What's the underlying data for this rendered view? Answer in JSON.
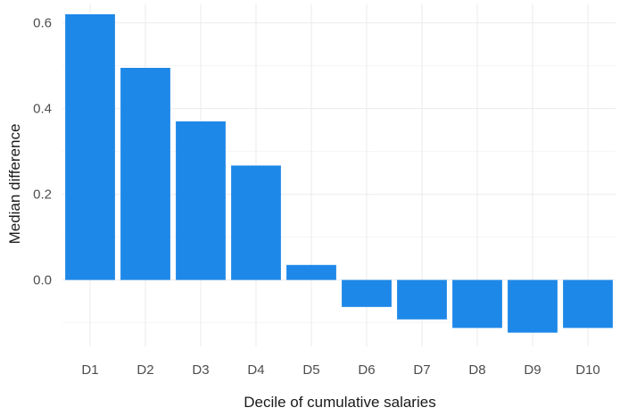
{
  "chart_data": {
    "type": "bar",
    "categories": [
      "D1",
      "D2",
      "D3",
      "D4",
      "D5",
      "D6",
      "D7",
      "D8",
      "D9",
      "D10"
    ],
    "values": [
      0.62,
      0.495,
      0.37,
      0.267,
      0.035,
      -0.063,
      -0.092,
      -0.112,
      -0.123,
      -0.112
    ],
    "title": "",
    "xlabel": "Decile of cumulative salaries",
    "ylabel": "Median difference",
    "ylim": [
      -0.155,
      0.645
    ],
    "yticks": [
      0.0,
      0.2,
      0.4,
      0.6
    ],
    "ytick_labels": [
      "0.0",
      "0.2",
      "0.4",
      "0.6"
    ],
    "grid": true,
    "bar_color": "#1e88e8",
    "legend": "none"
  }
}
